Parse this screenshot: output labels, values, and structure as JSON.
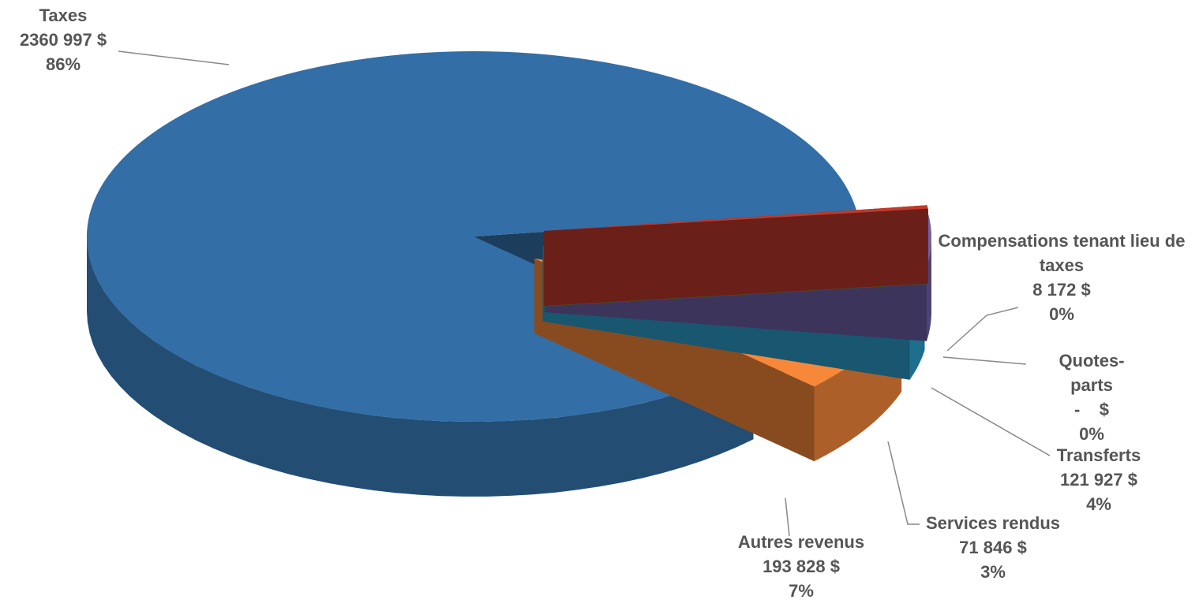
{
  "chart_data": {
    "type": "pie",
    "categories": [
      "Compensations tenant lieu de taxes",
      "Quotes-parts",
      "Transferts",
      "Services rendus",
      "Autres revenus",
      "Taxes"
    ],
    "values": [
      8172,
      0,
      121927,
      71846,
      193828,
      2360997
    ],
    "value_labels": [
      "8 172  $",
      "-    $",
      "121 927  $",
      "71 846  $",
      "193 828  $",
      "2360 997  $"
    ],
    "percent_labels": [
      "0%",
      "0%",
      "4%",
      "3%",
      "7%",
      "86%"
    ],
    "colors": [
      "#c0392b",
      "#8a9a3a",
      "#6f5fa6",
      "#2b9fc9",
      "#f7883a",
      "#336ea6"
    ]
  }
}
